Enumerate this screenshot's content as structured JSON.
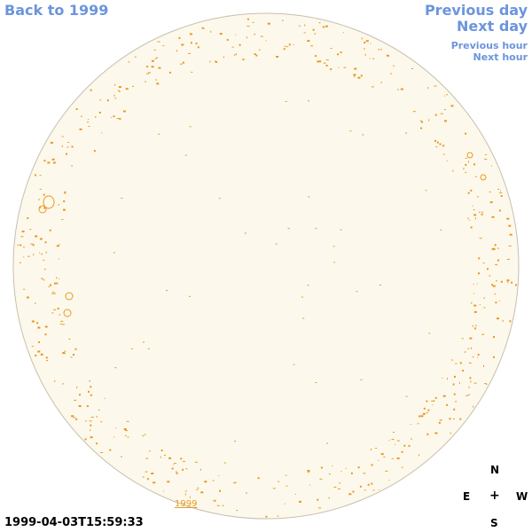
{
  "nav": {
    "back_label": "Back to 1999",
    "prev_day_label": "Previous day",
    "next_day_label": "Next day",
    "prev_hour_label": "Previous hour",
    "next_hour_label": "Next hour"
  },
  "image": {
    "timestamp": "1999-04-03T15:59:33",
    "year_label": "1999"
  },
  "compass": {
    "north": "N",
    "east": "E",
    "center": "+",
    "west": "W",
    "south": "S"
  },
  "colors": {
    "link": "#6b95dd",
    "disk_fill": "#fdf8ec",
    "disk_border": "#c8bfae",
    "feature": "#e69a1f"
  }
}
